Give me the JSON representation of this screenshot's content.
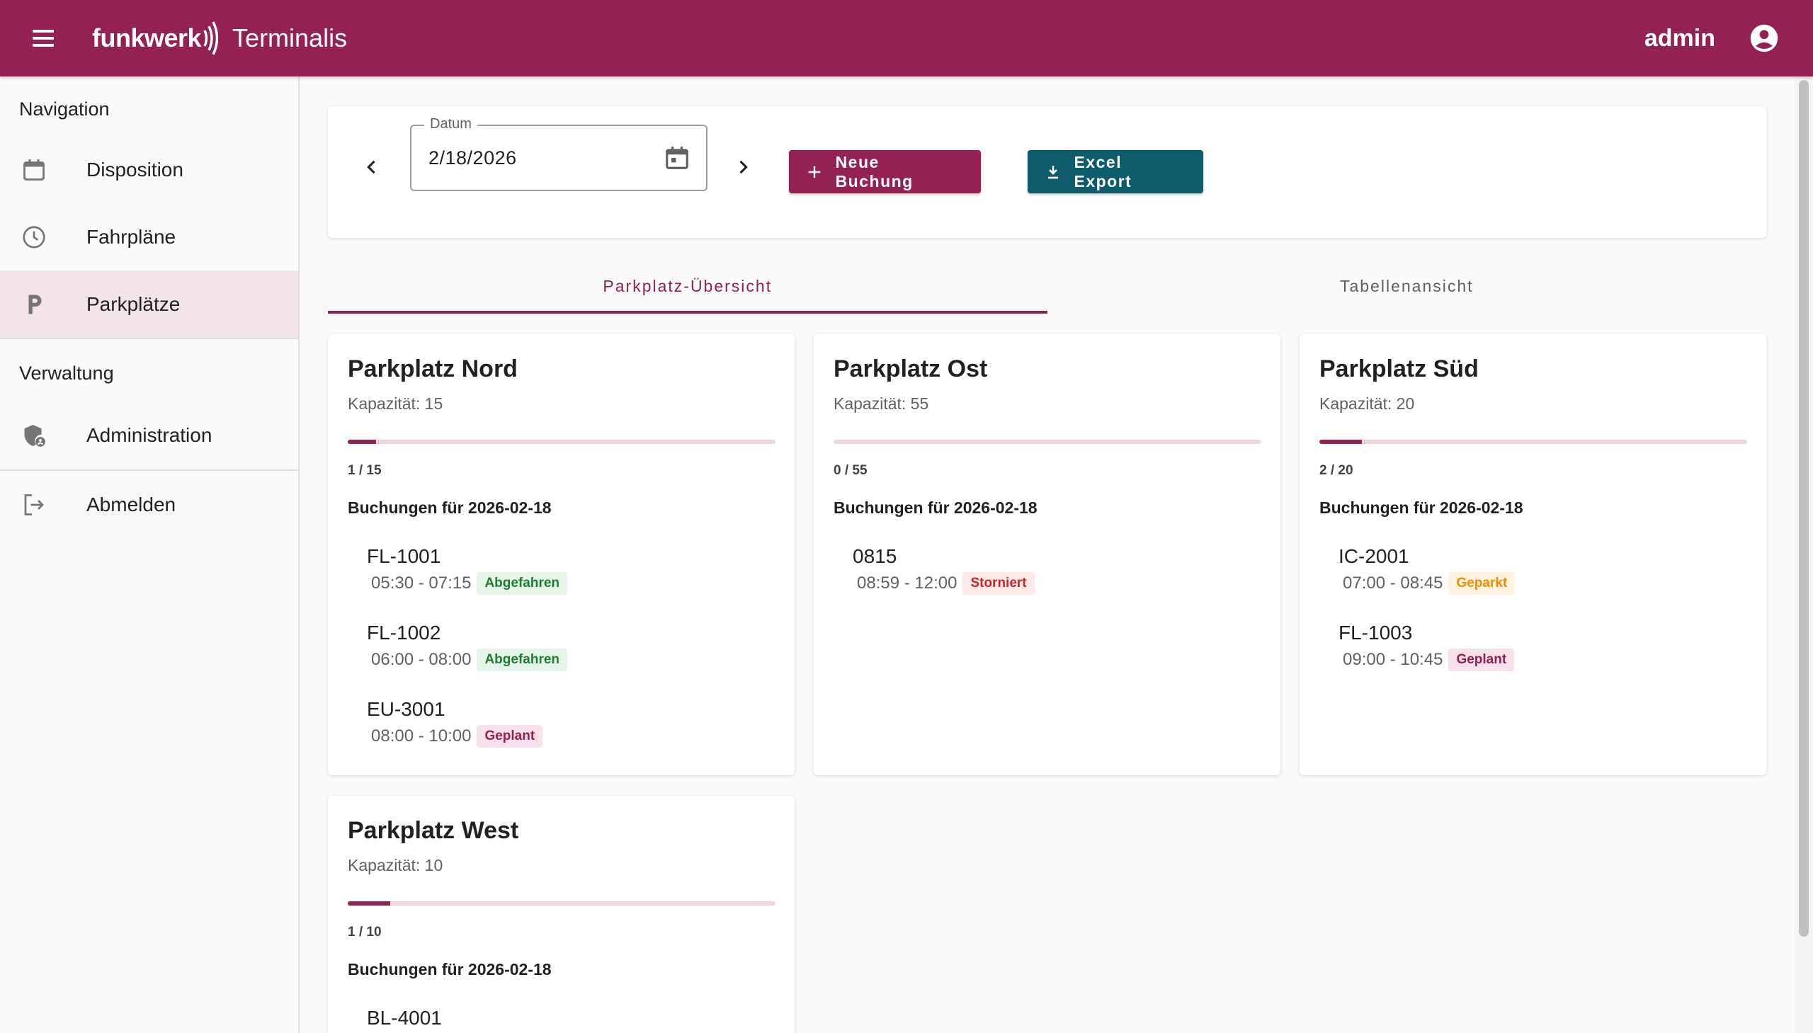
{
  "header": {
    "brand": "funkwerk",
    "app_title": "Terminalis",
    "user": "admin"
  },
  "sidebar": {
    "sections": [
      {
        "title": "Navigation",
        "items": [
          {
            "label": "Disposition",
            "icon": "calendar-icon"
          },
          {
            "label": "Fahrpläne",
            "icon": "clock-icon"
          },
          {
            "label": "Parkplätze",
            "icon": "parking-icon",
            "active": true
          }
        ]
      },
      {
        "title": "Verwaltung",
        "items": [
          {
            "label": "Administration",
            "icon": "admin-shield-icon"
          }
        ]
      }
    ],
    "logout_label": "Abmelden"
  },
  "toolbar": {
    "date_label": "Datum",
    "date_value": "2/18/2026",
    "new_booking_label": "Neue Buchung",
    "export_label": "Excel Export"
  },
  "tabs": [
    {
      "label": "Parkplatz-Übersicht",
      "active": true
    },
    {
      "label": "Tabellenansicht",
      "active": false
    }
  ],
  "parking_lots": [
    {
      "name": "Parkplatz Nord",
      "capacity_text": "Kapazität: 15",
      "occupancy_text": "1 / 15",
      "occupancy": 0.0667,
      "bookings_title": "Buchungen für 2026-02-18",
      "bookings": [
        {
          "id": "FL-1001",
          "time": "05:30 - 07:15",
          "status": "Abgefahren"
        },
        {
          "id": "FL-1002",
          "time": "06:00 - 08:00",
          "status": "Abgefahren"
        },
        {
          "id": "EU-3001",
          "time": "08:00 - 10:00",
          "status": "Geplant"
        }
      ]
    },
    {
      "name": "Parkplatz Ost",
      "capacity_text": "Kapazität: 55",
      "occupancy_text": "0 / 55",
      "occupancy": 0,
      "bookings_title": "Buchungen für 2026-02-18",
      "bookings": [
        {
          "id": "0815",
          "time": "08:59 - 12:00",
          "status": "Storniert"
        }
      ]
    },
    {
      "name": "Parkplatz Süd",
      "capacity_text": "Kapazität: 20",
      "occupancy_text": "2 / 20",
      "occupancy": 0.1,
      "bookings_title": "Buchungen für 2026-02-18",
      "bookings": [
        {
          "id": "IC-2001",
          "time": "07:00 - 08:45",
          "status": "Geparkt"
        },
        {
          "id": "FL-1003",
          "time": "09:00 - 10:45",
          "status": "Geplant"
        }
      ]
    },
    {
      "name": "Parkplatz West",
      "capacity_text": "Kapazität: 10",
      "occupancy_text": "1 / 10",
      "occupancy": 0.1,
      "bookings_title": "Buchungen für 2026-02-18",
      "bookings": [
        {
          "id": "BL-4001"
        }
      ]
    }
  ],
  "colors": {
    "primary": "#942154",
    "export": "#0d5c6b",
    "status_abgefahren": "#1e7e34",
    "status_storniert": "#c62828",
    "status_geparkt": "#ef8c00",
    "status_geplant": "#942154"
  }
}
